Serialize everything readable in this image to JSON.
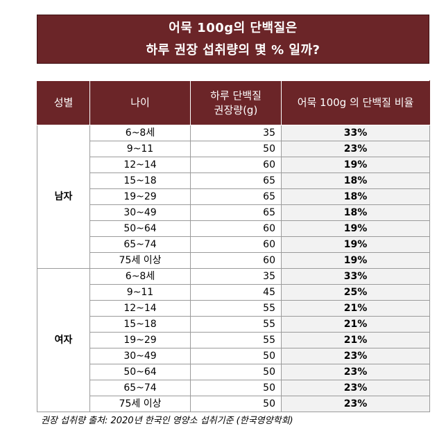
{
  "title": {
    "line1": "어묵 100g의 단백질은",
    "line2": "하루 권장 섭취량의 몇 % 일까?"
  },
  "table": {
    "headers": {
      "gender": "성별",
      "age": "나이",
      "daily_line1": "하루 단백질",
      "daily_line2": "권장량(g)",
      "ratio": "어묵 100g 의 단백질 비율"
    },
    "groups": [
      {
        "gender": "남자",
        "rows": [
          {
            "age": "6~8세",
            "amount": "35",
            "ratio": "33%"
          },
          {
            "age": "9~11",
            "amount": "50",
            "ratio": "23%"
          },
          {
            "age": "12~14",
            "amount": "60",
            "ratio": "19%"
          },
          {
            "age": "15~18",
            "amount": "65",
            "ratio": "18%"
          },
          {
            "age": "19~29",
            "amount": "65",
            "ratio": "18%"
          },
          {
            "age": "30~49",
            "amount": "65",
            "ratio": "18%"
          },
          {
            "age": "50~64",
            "amount": "60",
            "ratio": "19%"
          },
          {
            "age": "65~74",
            "amount": "60",
            "ratio": "19%"
          },
          {
            "age": "75세 이상",
            "amount": "60",
            "ratio": "19%"
          }
        ]
      },
      {
        "gender": "여자",
        "rows": [
          {
            "age": "6~8세",
            "amount": "35",
            "ratio": "33%"
          },
          {
            "age": "9~11",
            "amount": "45",
            "ratio": "25%"
          },
          {
            "age": "12~14",
            "amount": "55",
            "ratio": "21%"
          },
          {
            "age": "15~18",
            "amount": "55",
            "ratio": "21%"
          },
          {
            "age": "19~29",
            "amount": "55",
            "ratio": "21%"
          },
          {
            "age": "30~49",
            "amount": "50",
            "ratio": "23%"
          },
          {
            "age": "50~64",
            "amount": "50",
            "ratio": "23%"
          },
          {
            "age": "65~74",
            "amount": "50",
            "ratio": "23%"
          },
          {
            "age": "75세 이상",
            "amount": "50",
            "ratio": "23%"
          }
        ]
      }
    ]
  },
  "footnote": "권장 섭취량 출처: 2020년 한국인 영양소 섭취기준 (한국영양학회)",
  "colors": {
    "header_bg": "#6b2528",
    "ratio_bg": "#f2f2f2"
  }
}
